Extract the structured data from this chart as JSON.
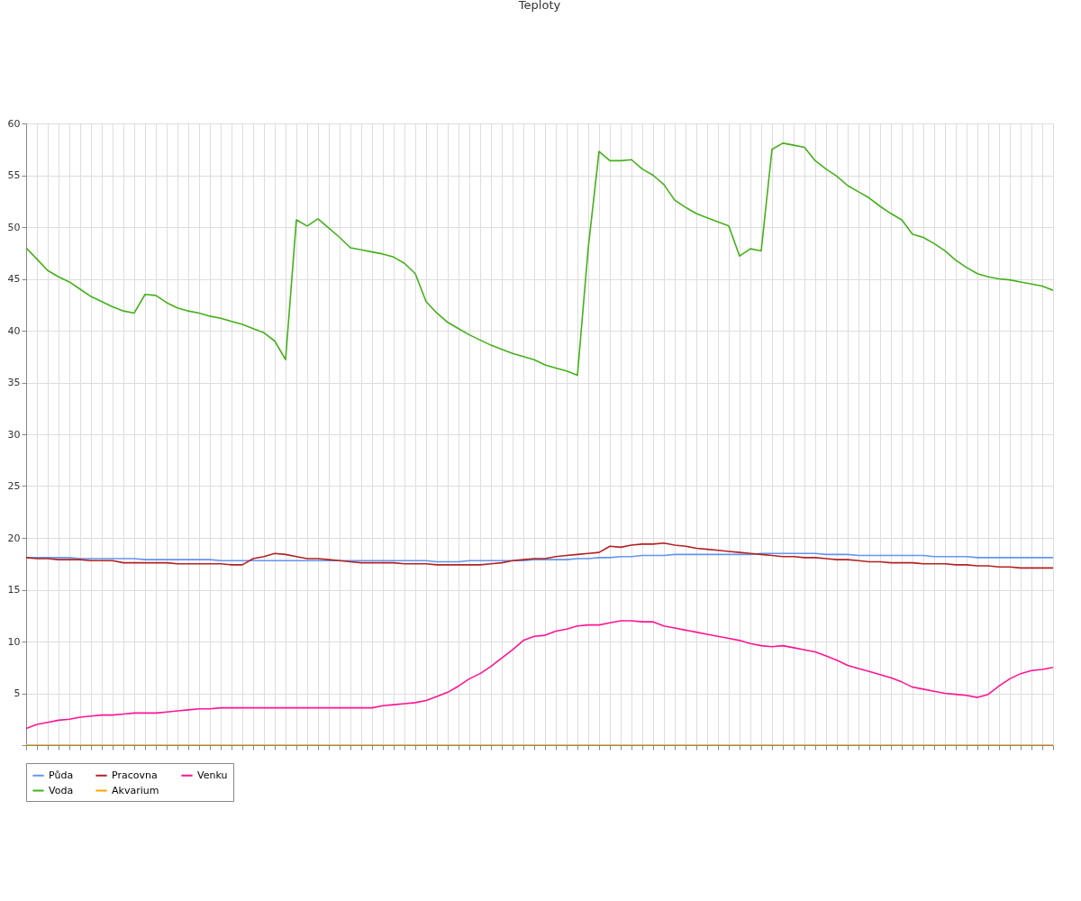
{
  "chart_data": {
    "type": "line",
    "title": "Teploty",
    "categories": [
      null,
      null,
      null,
      null,
      null,
      null,
      null,
      null,
      null,
      null,
      null,
      null,
      null,
      null,
      null,
      null,
      null,
      null,
      null,
      null,
      null,
      null,
      null,
      null,
      null,
      null,
      null,
      null,
      null,
      null,
      null,
      null,
      null,
      null,
      null,
      null,
      null,
      null,
      null,
      null,
      null,
      null,
      null,
      null,
      null,
      null,
      null,
      null,
      null,
      null,
      null,
      null,
      null,
      null,
      null,
      null,
      null,
      null,
      null,
      null,
      null,
      null,
      null,
      null,
      null,
      null,
      null,
      null,
      null,
      null,
      null,
      null,
      null,
      null,
      null,
      null,
      null,
      null,
      null,
      null,
      null,
      null,
      null,
      null,
      null,
      null,
      null,
      null,
      null,
      null,
      null,
      null,
      null,
      null,
      null,
      null
    ],
    "ylim": [
      0,
      60
    ],
    "yticks": [
      {
        "value": 0,
        "label": null
      },
      5,
      10,
      15,
      20,
      25,
      30,
      35,
      40,
      45,
      50,
      55,
      60
    ],
    "grid": true,
    "legend": "bottom",
    "tick_labels": "y",
    "series": [
      {
        "name": "Půda",
        "color": "#6495ed",
        "values": [
          18.1,
          18.1,
          18.1,
          18.1,
          18.1,
          18.0,
          18.0,
          18.0,
          18.0,
          18.0,
          18.0,
          17.9,
          17.9,
          17.9,
          17.9,
          17.9,
          17.9,
          17.9,
          17.8,
          17.8,
          17.8,
          17.8,
          17.8,
          17.8,
          17.8,
          17.8,
          17.8,
          17.8,
          17.8,
          17.8,
          17.8,
          17.8,
          17.8,
          17.8,
          17.8,
          17.8,
          17.8,
          17.8,
          17.7,
          17.7,
          17.7,
          17.8,
          17.8,
          17.8,
          17.8,
          17.8,
          17.8,
          17.9,
          17.9,
          17.9,
          17.9,
          18.0,
          18.0,
          18.1,
          18.1,
          18.2,
          18.2,
          18.3,
          18.3,
          18.3,
          18.4,
          18.4,
          18.4,
          18.4,
          18.4,
          18.4,
          18.4,
          18.4,
          18.5,
          18.5,
          18.5,
          18.5,
          18.5,
          18.5,
          18.4,
          18.4,
          18.4,
          18.3,
          18.3,
          18.3,
          18.3,
          18.3,
          18.3,
          18.3,
          18.2,
          18.2,
          18.2,
          18.2,
          18.1,
          18.1,
          18.1,
          18.1,
          18.1,
          18.1,
          18.1,
          18.1
        ]
      },
      {
        "name": "Voda",
        "color": "#44b01a",
        "values": [
          48,
          46.9,
          45.8,
          45.2,
          44.7,
          44.0,
          43.3,
          42.8,
          42.3,
          41.9,
          41.7,
          43.5,
          43.4,
          42.7,
          42.2,
          41.9,
          41.7,
          41.4,
          41.2,
          40.9,
          40.6,
          40.2,
          39.8,
          39.0,
          37.2,
          50.7,
          50.1,
          50.8,
          49.9,
          49.0,
          48.0,
          47.8,
          47.6,
          47.4,
          47.1,
          46.5,
          45.5,
          42.8,
          41.7,
          40.8,
          40.2,
          39.6,
          39.1,
          38.6,
          38.2,
          37.8,
          37.5,
          37.2,
          36.7,
          36.4,
          36.1,
          35.7,
          48.0,
          57.3,
          56.4,
          56.4,
          56.5,
          55.6,
          55.0,
          54.1,
          52.6,
          51.9,
          51.3,
          50.9,
          50.5,
          50.1,
          47.2,
          47.9,
          47.7,
          57.5,
          58.1,
          57.9,
          57.7,
          56.4,
          55.6,
          54.9,
          54.0,
          53.4,
          52.8,
          52.0,
          51.3,
          50.7,
          49.3,
          49.0,
          48.4,
          47.7,
          46.8,
          46.1,
          45.5,
          45.2,
          45.0,
          44.9,
          44.7,
          44.5,
          44.3,
          43.9
        ]
      },
      {
        "name": "Pracovna",
        "color": "#b22222",
        "values": [
          18.1,
          18.0,
          18.0,
          17.9,
          17.9,
          17.9,
          17.8,
          17.8,
          17.8,
          17.6,
          17.6,
          17.6,
          17.6,
          17.6,
          17.5,
          17.5,
          17.5,
          17.5,
          17.5,
          17.4,
          17.4,
          18.0,
          18.2,
          18.5,
          18.4,
          18.2,
          18.0,
          18.0,
          17.9,
          17.8,
          17.7,
          17.6,
          17.6,
          17.6,
          17.6,
          17.5,
          17.5,
          17.5,
          17.4,
          17.4,
          17.4,
          17.4,
          17.4,
          17.5,
          17.6,
          17.8,
          17.9,
          18.0,
          18.0,
          18.2,
          18.3,
          18.4,
          18.5,
          18.6,
          19.2,
          19.1,
          19.3,
          19.4,
          19.4,
          19.5,
          19.3,
          19.2,
          19.0,
          18.9,
          18.8,
          18.7,
          18.6,
          18.5,
          18.4,
          18.3,
          18.2,
          18.2,
          18.1,
          18.1,
          18.0,
          17.9,
          17.9,
          17.8,
          17.7,
          17.7,
          17.6,
          17.6,
          17.6,
          17.5,
          17.5,
          17.5,
          17.4,
          17.4,
          17.3,
          17.3,
          17.2,
          17.2,
          17.1,
          17.1,
          17.1,
          17.1
        ]
      },
      {
        "name": "Akvarium",
        "color": "#ffa500",
        "values": [
          0,
          0,
          0,
          0,
          0,
          0,
          0,
          0,
          0,
          0,
          0,
          0,
          0,
          0,
          0,
          0,
          0,
          0,
          0,
          0,
          0,
          0,
          0,
          0,
          0,
          0,
          0,
          0,
          0,
          0,
          0,
          0,
          0,
          0,
          0,
          0,
          0,
          0,
          0,
          0,
          0,
          0,
          0,
          0,
          0,
          0,
          0,
          0,
          0,
          0,
          0,
          0,
          0,
          0,
          0,
          0,
          0,
          0,
          0,
          0,
          0,
          0,
          0,
          0,
          0,
          0,
          0,
          0,
          0,
          0,
          0,
          0,
          0,
          0,
          0,
          0,
          0,
          0,
          0,
          0,
          0,
          0,
          0,
          0,
          0,
          0,
          0,
          0,
          0,
          0,
          0,
          0,
          0,
          0,
          0,
          0
        ]
      },
      {
        "name": "Venku",
        "color": "#ff1493",
        "values": [
          1.6,
          2.0,
          2.2,
          2.4,
          2.5,
          2.7,
          2.8,
          2.9,
          2.9,
          3.0,
          3.1,
          3.1,
          3.1,
          3.2,
          3.3,
          3.4,
          3.5,
          3.5,
          3.6,
          3.6,
          3.6,
          3.6,
          3.6,
          3.6,
          3.6,
          3.6,
          3.6,
          3.6,
          3.6,
          3.6,
          3.6,
          3.6,
          3.6,
          3.8,
          3.9,
          4.0,
          4.1,
          4.3,
          4.7,
          5.1,
          5.7,
          6.4,
          6.9,
          7.6,
          8.4,
          9.2,
          10.1,
          10.5,
          10.6,
          11.0,
          11.2,
          11.5,
          11.6,
          11.6,
          11.8,
          12.0,
          12.0,
          11.9,
          11.9,
          11.5,
          11.3,
          11.1,
          10.9,
          10.7,
          10.5,
          10.3,
          10.1,
          9.8,
          9.6,
          9.5,
          9.6,
          9.4,
          9.2,
          9.0,
          8.6,
          8.2,
          7.7,
          7.4,
          7.1,
          6.8,
          6.5,
          6.1,
          5.6,
          5.4,
          5.2,
          5.0,
          4.9,
          4.8,
          4.6,
          4.9,
          5.7,
          6.4,
          6.9,
          7.2,
          7.3,
          7.5
        ]
      }
    ]
  }
}
